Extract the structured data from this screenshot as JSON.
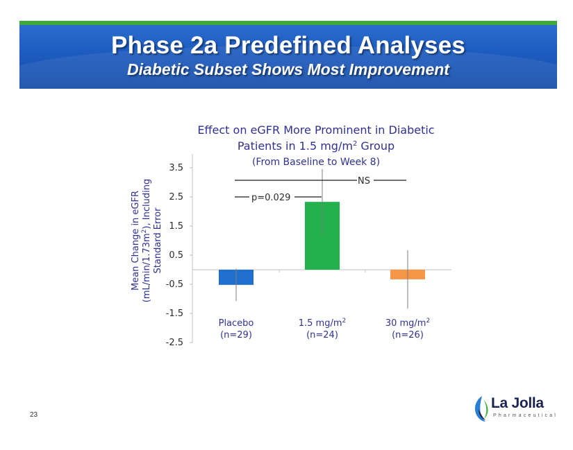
{
  "header": {
    "title": "Phase 2a Predefined Analyses",
    "subtitle": "Diabetic Subset Shows Most Improvement"
  },
  "chart_data": {
    "type": "bar",
    "title_line1": "Effect on eGFR More Prominent in Diabetic",
    "title_line2_pre": "Patients in 1.5 mg/m",
    "title_line2_sup": "2",
    "title_line2_post": " Group",
    "subtitle": "(From Baseline to Week 8)",
    "ylabel_line1": "Mean Change in eGFR",
    "ylabel_line2_pre": "(mL/min/1.73m",
    "ylabel_line2_sup": "2",
    "ylabel_line2_post": "), Including",
    "ylabel_line3": "Standard Error",
    "ylim": [
      -2.5,
      4.0
    ],
    "yticks": [
      3.5,
      2.5,
      1.5,
      0.5,
      -0.5,
      -1.5,
      -2.5
    ],
    "ytick_labels": [
      "3.5",
      "2.5",
      "1.5",
      "0.5",
      "-0.5",
      "-1.5",
      "-2.5"
    ],
    "categories": [
      {
        "name_pre": "Placebo",
        "name_sup": "",
        "n": "(n=29)"
      },
      {
        "name_pre": "1.5 mg/m",
        "name_sup": "2",
        "n": "(n=24)"
      },
      {
        "name_pre": "30 mg/m",
        "name_sup": "2",
        "n": "(n=26)"
      }
    ],
    "values": [
      -0.52,
      2.33,
      -0.33
    ],
    "errors": [
      0.56,
      1.13,
      1.0
    ],
    "colors": [
      "#1f6fce",
      "#22b14c",
      "#f79646"
    ],
    "annotations": {
      "p_value": "p=0.029",
      "ns": "NS"
    }
  },
  "footer": {
    "page_number": "23"
  },
  "logo": {
    "name": "La Jolla",
    "tagline": "Pharmaceutical",
    "colors": [
      "#2a7fd4",
      "#3fae3a",
      "#1a2350"
    ]
  }
}
